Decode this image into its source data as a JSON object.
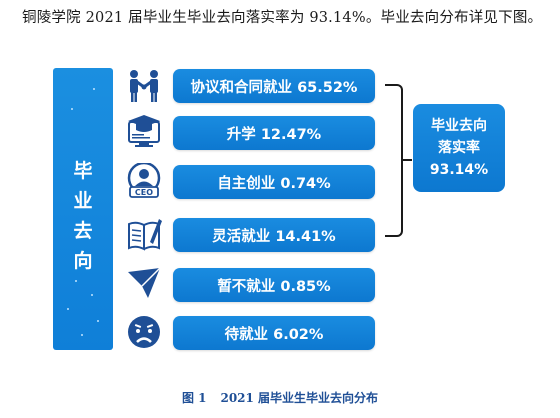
{
  "intro_text": "铜陵学院 2021 届毕业生毕业去向落实率为 93.14%。毕业去向分布详见下图。",
  "left_title": [
    "毕",
    "业",
    "去",
    "向"
  ],
  "items": [
    {
      "label": "协议和合同就业 65.52%",
      "icon": "handshake-icon"
    },
    {
      "label": "升学 12.47%",
      "icon": "graduation-cap-icon"
    },
    {
      "label": "自主创业 0.74%",
      "icon": "ceo-icon"
    },
    {
      "label": "灵活就业 14.41%",
      "icon": "notebook-pen-icon"
    },
    {
      "label": "暂不就业 0.85%",
      "icon": "paper-plane-icon"
    },
    {
      "label": "待就业 6.02%",
      "icon": "sad-face-icon"
    }
  ],
  "total": {
    "line1": "毕业去向",
    "line2": "落实率",
    "value": "93.14%"
  },
  "caption": {
    "fig": "图 1",
    "text": "2021 届毕业生毕业去向分布"
  },
  "colors": {
    "accent": "#0f7fd8",
    "caption": "#1f4f96",
    "icon": "#1f4f96"
  }
}
